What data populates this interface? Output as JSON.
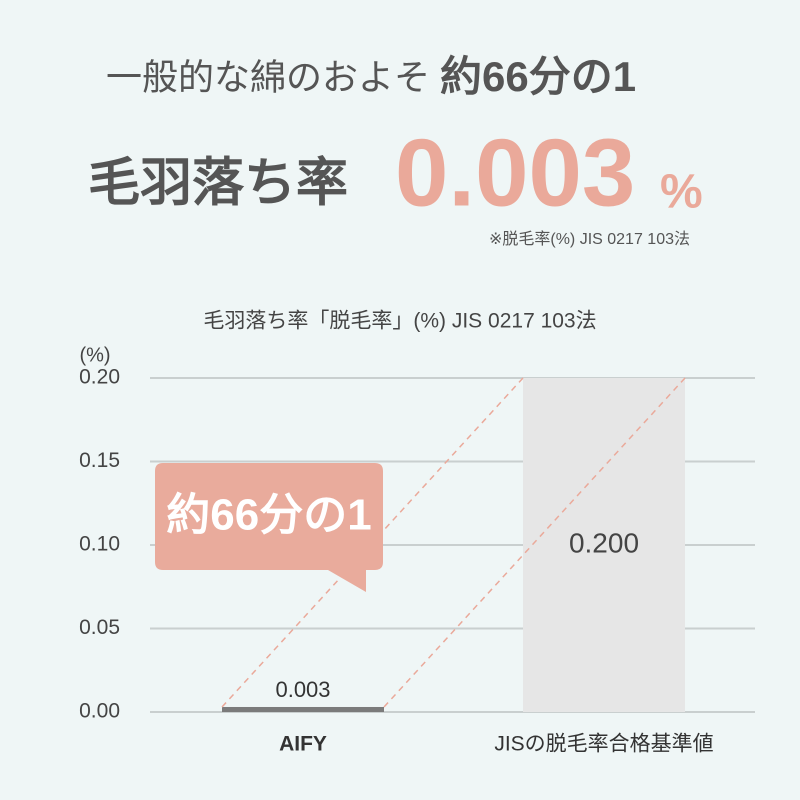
{
  "header": {
    "line1_prefix": "一般的な綿のおよそ",
    "line1_emphasis": "約66分の1",
    "line2_label": "毛羽落ち率",
    "line2_value": "0.003",
    "line2_unit": "%",
    "note": "※脱毛率(%) JIS 0217 103法"
  },
  "chart_data": {
    "type": "bar",
    "title": "毛羽落ち率「脱毛率」(%) JIS 0217 103法",
    "y_unit_label": "(%)",
    "categories": [
      "AIFY",
      "JISの脱毛率合格基準値"
    ],
    "values": [
      0.003,
      0.2
    ],
    "value_labels": [
      "0.003",
      "0.200"
    ],
    "colors": [
      "#7b7b7b",
      "#e6e6e6"
    ],
    "ylim": [
      0,
      0.2
    ],
    "yticks": [
      {
        "value": 0,
        "label": "0.00"
      },
      {
        "value": 0.05,
        "label": "0.05"
      },
      {
        "value": 0.1,
        "label": "0.10"
      },
      {
        "value": 0.15,
        "label": "0.15"
      },
      {
        "value": 0.2,
        "label": "0.20"
      }
    ],
    "grid": true,
    "annotation": "約66分の1"
  }
}
